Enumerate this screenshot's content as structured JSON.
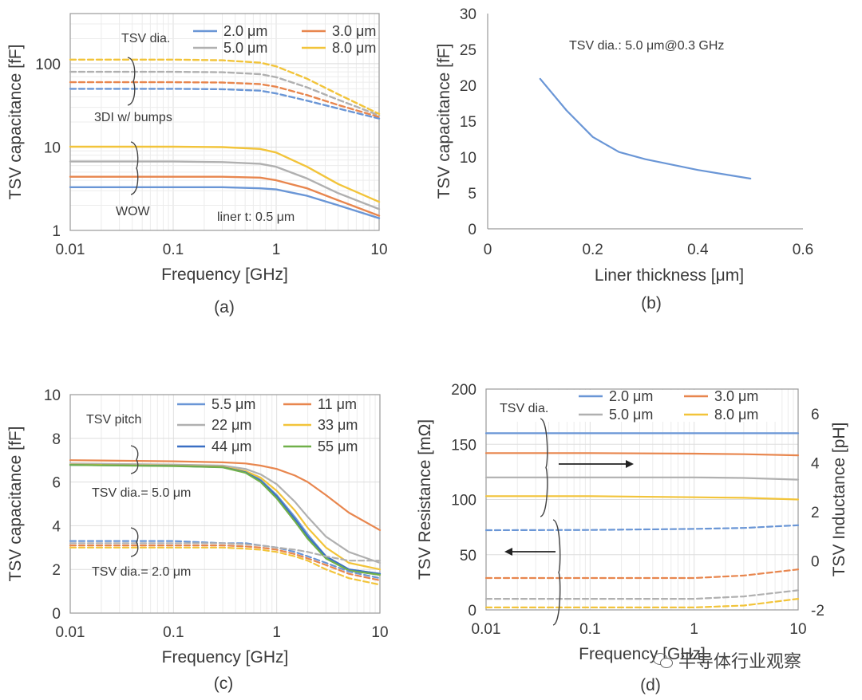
{
  "colors": {
    "d2": "#6a96d6",
    "d3": "#e8864e",
    "d5": "#b0b0b0",
    "d8": "#f2c43a",
    "p44": "#3a6fc4",
    "p55": "#70b04a",
    "axis": "#9a9a9a",
    "grid": "#dedede"
  },
  "watermark": {
    "text": "半导体行业观察",
    "icon": "wechat-icon"
  },
  "chart_data": [
    {
      "id": "a",
      "type": "line",
      "caption": "(a)",
      "xscale": "log",
      "yscale": "log",
      "xlabel": "Frequency [GHz]",
      "ylabel": "TSV capacitance [fF]",
      "xlim": [
        0.01,
        10
      ],
      "ylim": [
        1,
        400
      ],
      "xticks": [
        "0.01",
        "0.1",
        "1",
        "10"
      ],
      "xtick_values": [
        0.01,
        0.1,
        1,
        10
      ],
      "yticks": [
        "1",
        "10",
        "100"
      ],
      "ytick_values": [
        1,
        10,
        100
      ],
      "legend_title": "TSV dia.",
      "legend": [
        {
          "label": "2.0 μm",
          "color": "#6a96d6"
        },
        {
          "label": "3.0 μm",
          "color": "#e8864e"
        },
        {
          "label": "5.0 μm",
          "color": "#b0b0b0"
        },
        {
          "label": "8.0 μm",
          "color": "#f2c43a"
        }
      ],
      "annotations": {
        "bumps": "3DI w/ bumps",
        "wow": "WOW",
        "liner": "liner t: 0.5 μm"
      },
      "x": [
        0.01,
        0.1,
        0.3,
        0.7,
        1,
        2,
        4,
        10
      ],
      "series": [
        {
          "name": "2.0 μm 3DI w/ bumps",
          "color": "#6a96d6",
          "dashed": true,
          "values": [
            50,
            50,
            49.5,
            47.5,
            44,
            36,
            29,
            22
          ]
        },
        {
          "name": "3.0 μm 3DI w/ bumps",
          "color": "#e8864e",
          "dashed": true,
          "values": [
            60,
            60,
            59.5,
            57,
            53,
            42,
            32,
            23
          ]
        },
        {
          "name": "5.0 μm 3DI w/ bumps",
          "color": "#b0b0b0",
          "dashed": true,
          "values": [
            80,
            80,
            79,
            75,
            69,
            52,
            37,
            24
          ]
        },
        {
          "name": "8.0 μm 3DI w/ bumps",
          "color": "#f2c43a",
          "dashed": true,
          "values": [
            112,
            112,
            110,
            103,
            93,
            66,
            43,
            25
          ]
        },
        {
          "name": "2.0 μm WOW",
          "color": "#6a96d6",
          "dashed": false,
          "values": [
            3.3,
            3.3,
            3.3,
            3.2,
            3.1,
            2.6,
            2.0,
            1.4
          ]
        },
        {
          "name": "3.0 μm WOW",
          "color": "#e8864e",
          "dashed": false,
          "values": [
            4.4,
            4.4,
            4.4,
            4.3,
            4.0,
            3.2,
            2.3,
            1.5
          ]
        },
        {
          "name": "5.0 μm WOW",
          "color": "#b0b0b0",
          "dashed": false,
          "values": [
            6.7,
            6.7,
            6.6,
            6.3,
            5.8,
            4.2,
            2.8,
            1.8
          ]
        },
        {
          "name": "8.0 μm WOW",
          "color": "#f2c43a",
          "dashed": false,
          "values": [
            10.1,
            10.1,
            10.0,
            9.5,
            8.6,
            5.8,
            3.6,
            2.2
          ]
        }
      ]
    },
    {
      "id": "b",
      "type": "line",
      "caption": "(b)",
      "xlabel": "Liner thickness [μm]",
      "ylabel": "TSV capacitance [fF]",
      "xlim": [
        0,
        0.6
      ],
      "ylim": [
        0,
        30
      ],
      "xticks": [
        "0",
        "0.2",
        "0.4",
        "0.6"
      ],
      "xtick_values": [
        0,
        0.2,
        0.4,
        0.6
      ],
      "yticks": [
        "0",
        "5",
        "10",
        "15",
        "20",
        "25",
        "30"
      ],
      "ytick_values": [
        0,
        5,
        10,
        15,
        20,
        25,
        30
      ],
      "annotation": "TSV dia.: 5.0 μm@0.3 GHz",
      "x": [
        0.1,
        0.15,
        0.2,
        0.25,
        0.3,
        0.4,
        0.5
      ],
      "series": [
        {
          "name": "TSV dia. 5.0 μm",
          "color": "#6a96d6",
          "dashed": false,
          "values": [
            20.9,
            16.5,
            12.8,
            10.7,
            9.7,
            8.2,
            7.0
          ]
        }
      ]
    },
    {
      "id": "c",
      "type": "line",
      "caption": "(c)",
      "xscale": "log",
      "xlabel": "Frequency [GHz]",
      "ylabel": "TSV capacitance [fF]",
      "xlim": [
        0.01,
        10
      ],
      "ylim": [
        0,
        10
      ],
      "xticks": [
        "0.01",
        "0.1",
        "1",
        "10"
      ],
      "xtick_values": [
        0.01,
        0.1,
        1,
        10
      ],
      "yticks": [
        "0",
        "2",
        "4",
        "6",
        "8",
        "10"
      ],
      "ytick_values": [
        0,
        2,
        4,
        6,
        8,
        10
      ],
      "legend_title": "TSV pitch",
      "legend": [
        {
          "label": "5.5 μm",
          "color": "#6a96d6"
        },
        {
          "label": "11 μm",
          "color": "#e8864e"
        },
        {
          "label": "22 μm",
          "color": "#b0b0b0"
        },
        {
          "label": "33 μm",
          "color": "#f2c43a"
        },
        {
          "label": "44 μm",
          "color": "#3a6fc4"
        },
        {
          "label": "55 μm",
          "color": "#70b04a"
        }
      ],
      "annotations": {
        "dia5": "TSV dia.= 5.0 μm",
        "dia2": "TSV dia.= 2.0 μm"
      },
      "x": [
        0.01,
        0.1,
        0.3,
        0.5,
        0.7,
        1,
        1.5,
        2,
        3,
        5,
        10
      ],
      "series": [
        {
          "name": "5.5 μm dia 5.0",
          "color": "#6a96d6",
          "dashed": false,
          "values": [
            6.8,
            6.75,
            6.7,
            6.5,
            6.1,
            5.4,
            4.4,
            3.6,
            2.6,
            2.0,
            1.8
          ]
        },
        {
          "name": "11 μm dia 5.0",
          "color": "#e8864e",
          "dashed": false,
          "values": [
            7.0,
            6.95,
            6.9,
            6.85,
            6.75,
            6.6,
            6.3,
            6.0,
            5.4,
            4.6,
            3.8
          ]
        },
        {
          "name": "22 μm dia 5.0",
          "color": "#b0b0b0",
          "dashed": false,
          "values": [
            6.85,
            6.8,
            6.75,
            6.6,
            6.35,
            5.9,
            5.1,
            4.4,
            3.5,
            2.8,
            2.3
          ]
        },
        {
          "name": "33 μm dia 5.0",
          "color": "#f2c43a",
          "dashed": false,
          "values": [
            6.8,
            6.75,
            6.7,
            6.5,
            6.2,
            5.6,
            4.7,
            3.9,
            3.0,
            2.3,
            2.0
          ]
        },
        {
          "name": "44 μm dia 5.0",
          "color": "#3a6fc4",
          "dashed": false,
          "values": [
            6.78,
            6.74,
            6.68,
            6.45,
            6.05,
            5.35,
            4.3,
            3.5,
            2.6,
            2.0,
            1.8
          ]
        },
        {
          "name": "55 μm dia 5.0",
          "color": "#70b04a",
          "dashed": false,
          "values": [
            6.78,
            6.73,
            6.67,
            6.42,
            6.0,
            5.25,
            4.2,
            3.4,
            2.5,
            1.95,
            1.75
          ]
        },
        {
          "name": "5.5 μm dia 2.0",
          "color": "#6a96d6",
          "dashed": true,
          "values": [
            3.3,
            3.3,
            3.2,
            3.2,
            3.1,
            3.0,
            2.8,
            2.6,
            2.3,
            1.9,
            1.6
          ]
        },
        {
          "name": "11 μm dia 2.0",
          "color": "#e8864e",
          "dashed": true,
          "values": [
            3.1,
            3.1,
            3.1,
            3.05,
            3.0,
            2.9,
            2.7,
            2.5,
            2.2,
            1.8,
            1.5
          ]
        },
        {
          "name": "22 μm dia 2.0",
          "color": "#b0b0b0",
          "dashed": true,
          "values": [
            3.2,
            3.2,
            3.2,
            3.15,
            3.1,
            3.0,
            2.9,
            2.8,
            2.6,
            2.4,
            2.4
          ]
        },
        {
          "name": "33 μm dia 2.0",
          "color": "#f2c43a",
          "dashed": true,
          "values": [
            3.0,
            3.0,
            3.0,
            2.95,
            2.9,
            2.8,
            2.6,
            2.4,
            2.0,
            1.6,
            1.3
          ]
        }
      ]
    },
    {
      "id": "d",
      "type": "line",
      "caption": "(d)",
      "xscale": "log",
      "xlabel": "Frequency [GHz]",
      "ylabel": "TSV Resistance [mΩ]",
      "y2label": "TSV Inductance [pH]",
      "xlim": [
        0.01,
        10
      ],
      "ylim": [
        0,
        200
      ],
      "y2lim": [
        -2,
        7
      ],
      "xticks": [
        "0.01",
        "0.1",
        "1",
        "10"
      ],
      "xtick_values": [
        0.01,
        0.1,
        1,
        10
      ],
      "yticks": [
        "0",
        "50",
        "100",
        "150",
        "200"
      ],
      "ytick_values": [
        0,
        50,
        100,
        150,
        200
      ],
      "y2ticks": [
        "-2",
        "0",
        "2",
        "4",
        "6"
      ],
      "y2tick_values": [
        -2,
        0,
        2,
        4,
        6
      ],
      "legend_title": "TSV dia.",
      "legend": [
        {
          "label": "2.0 μm",
          "color": "#6a96d6"
        },
        {
          "label": "3.0 μm",
          "color": "#e8864e"
        },
        {
          "label": "5.0 μm",
          "color": "#b0b0b0"
        },
        {
          "label": "8.0 μm",
          "color": "#f2c43a"
        }
      ],
      "x": [
        0.01,
        0.1,
        1,
        3,
        10
      ],
      "series": [
        {
          "name": "2.0 μm resistance",
          "axis": "left",
          "color": "#6a96d6",
          "dashed": false,
          "values": [
            160,
            160,
            160,
            160,
            160
          ]
        },
        {
          "name": "3.0 μm resistance",
          "axis": "left",
          "color": "#e8864e",
          "dashed": false,
          "values": [
            142,
            142,
            141.5,
            141,
            140
          ]
        },
        {
          "name": "5.0 μm resistance",
          "axis": "left",
          "color": "#b0b0b0",
          "dashed": false,
          "values": [
            120,
            120,
            120,
            119.5,
            118
          ]
        },
        {
          "name": "8.0 μm resistance",
          "axis": "left",
          "color": "#f2c43a",
          "dashed": false,
          "values": [
            103,
            103,
            102,
            101.5,
            100
          ]
        },
        {
          "name": "2.0 μm inductance",
          "axis": "right",
          "color": "#6a96d6",
          "dashed": true,
          "values": [
            1.25,
            1.26,
            1.3,
            1.34,
            1.45
          ]
        },
        {
          "name": "3.0 μm inductance",
          "axis": "right",
          "color": "#e8864e",
          "dashed": true,
          "values": [
            -0.7,
            -0.7,
            -0.7,
            -0.6,
            -0.35
          ]
        },
        {
          "name": "5.0 μm inductance",
          "axis": "right",
          "color": "#b0b0b0",
          "dashed": true,
          "values": [
            -1.55,
            -1.55,
            -1.55,
            -1.45,
            -1.2
          ]
        },
        {
          "name": "8.0 μm inductance",
          "axis": "right",
          "color": "#f2c43a",
          "dashed": true,
          "values": [
            -1.9,
            -1.9,
            -1.9,
            -1.82,
            -1.55
          ]
        }
      ]
    }
  ]
}
